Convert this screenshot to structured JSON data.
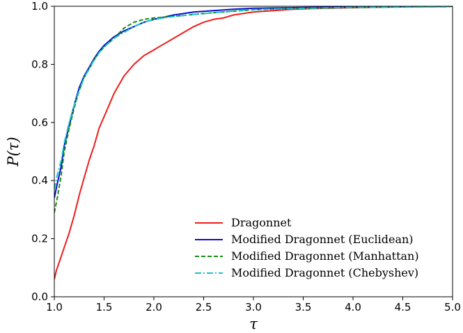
{
  "chart_data": {
    "type": "line",
    "title": "",
    "xlabel": "τ",
    "ylabel": "P(τ)",
    "xlim": [
      1.0,
      5.0
    ],
    "ylim": [
      0.0,
      1.0
    ],
    "x_ticks": [
      "1.0",
      "1.5",
      "2.0",
      "2.5",
      "3.0",
      "3.5",
      "4.0",
      "4.5",
      "5.0"
    ],
    "y_ticks": [
      "0.0",
      "0.2",
      "0.4",
      "0.6",
      "0.8",
      "1.0"
    ],
    "grid": false,
    "legend_position": "lower-right",
    "series": [
      {
        "name": "Dragonnet",
        "color": "#ee1c1c",
        "style": "solid",
        "points": [
          [
            1.0,
            0.06
          ],
          [
            1.02,
            0.09
          ],
          [
            1.05,
            0.12
          ],
          [
            1.1,
            0.17
          ],
          [
            1.15,
            0.22
          ],
          [
            1.2,
            0.28
          ],
          [
            1.25,
            0.35
          ],
          [
            1.3,
            0.41
          ],
          [
            1.35,
            0.47
          ],
          [
            1.4,
            0.52
          ],
          [
            1.45,
            0.58
          ],
          [
            1.5,
            0.62
          ],
          [
            1.55,
            0.66
          ],
          [
            1.6,
            0.7
          ],
          [
            1.65,
            0.73
          ],
          [
            1.7,
            0.76
          ],
          [
            1.8,
            0.8
          ],
          [
            1.9,
            0.83
          ],
          [
            2.0,
            0.85
          ],
          [
            2.1,
            0.87
          ],
          [
            2.2,
            0.89
          ],
          [
            2.3,
            0.91
          ],
          [
            2.4,
            0.93
          ],
          [
            2.5,
            0.945
          ],
          [
            2.6,
            0.955
          ],
          [
            2.7,
            0.96
          ],
          [
            2.8,
            0.97
          ],
          [
            2.9,
            0.975
          ],
          [
            3.0,
            0.98
          ],
          [
            3.2,
            0.985
          ],
          [
            3.4,
            0.99
          ],
          [
            3.6,
            0.992
          ],
          [
            4.0,
            0.995
          ],
          [
            4.5,
            0.998
          ],
          [
            5.0,
            1.0
          ]
        ]
      },
      {
        "name": "Modified Dragonnet (Euclidean)",
        "color": "#0a0ad0",
        "style": "solid",
        "points": [
          [
            1.0,
            0.34
          ],
          [
            1.03,
            0.39
          ],
          [
            1.07,
            0.45
          ],
          [
            1.1,
            0.52
          ],
          [
            1.15,
            0.59
          ],
          [
            1.2,
            0.66
          ],
          [
            1.25,
            0.72
          ],
          [
            1.3,
            0.76
          ],
          [
            1.35,
            0.79
          ],
          [
            1.4,
            0.82
          ],
          [
            1.45,
            0.845
          ],
          [
            1.5,
            0.865
          ],
          [
            1.6,
            0.895
          ],
          [
            1.7,
            0.915
          ],
          [
            1.8,
            0.93
          ],
          [
            1.9,
            0.945
          ],
          [
            2.0,
            0.955
          ],
          [
            2.2,
            0.97
          ],
          [
            2.4,
            0.98
          ],
          [
            2.6,
            0.985
          ],
          [
            2.8,
            0.99
          ],
          [
            3.0,
            0.993
          ],
          [
            3.5,
            0.996
          ],
          [
            4.0,
            0.998
          ],
          [
            5.0,
            1.0
          ]
        ]
      },
      {
        "name": "Modified Dragonnet (Manhattan)",
        "color": "#138a13",
        "style": "dashed",
        "points": [
          [
            1.0,
            0.29
          ],
          [
            1.03,
            0.34
          ],
          [
            1.07,
            0.42
          ],
          [
            1.1,
            0.5
          ],
          [
            1.15,
            0.58
          ],
          [
            1.2,
            0.65
          ],
          [
            1.25,
            0.71
          ],
          [
            1.3,
            0.755
          ],
          [
            1.35,
            0.785
          ],
          [
            1.4,
            0.815
          ],
          [
            1.45,
            0.84
          ],
          [
            1.5,
            0.86
          ],
          [
            1.6,
            0.89
          ],
          [
            1.7,
            0.925
          ],
          [
            1.8,
            0.945
          ],
          [
            1.9,
            0.955
          ],
          [
            2.0,
            0.96
          ],
          [
            2.2,
            0.965
          ],
          [
            2.4,
            0.972
          ],
          [
            2.6,
            0.978
          ],
          [
            2.8,
            0.983
          ],
          [
            3.0,
            0.988
          ],
          [
            3.5,
            0.993
          ],
          [
            4.0,
            0.996
          ],
          [
            5.0,
            1.0
          ]
        ]
      },
      {
        "name": "Modified Dragonnet (Chebyshev)",
        "color": "#17c4cc",
        "style": "dashdot",
        "points": [
          [
            1.0,
            0.37
          ],
          [
            1.03,
            0.42
          ],
          [
            1.07,
            0.47
          ],
          [
            1.1,
            0.53
          ],
          [
            1.15,
            0.6
          ],
          [
            1.2,
            0.66
          ],
          [
            1.25,
            0.71
          ],
          [
            1.3,
            0.755
          ],
          [
            1.35,
            0.785
          ],
          [
            1.4,
            0.815
          ],
          [
            1.45,
            0.84
          ],
          [
            1.5,
            0.86
          ],
          [
            1.6,
            0.89
          ],
          [
            1.7,
            0.91
          ],
          [
            1.8,
            0.93
          ],
          [
            1.9,
            0.945
          ],
          [
            2.0,
            0.955
          ],
          [
            2.2,
            0.965
          ],
          [
            2.4,
            0.972
          ],
          [
            2.6,
            0.978
          ],
          [
            2.8,
            0.984
          ],
          [
            3.0,
            0.989
          ],
          [
            3.5,
            0.993
          ],
          [
            4.0,
            0.996
          ],
          [
            5.0,
            0.998
          ]
        ]
      }
    ]
  }
}
